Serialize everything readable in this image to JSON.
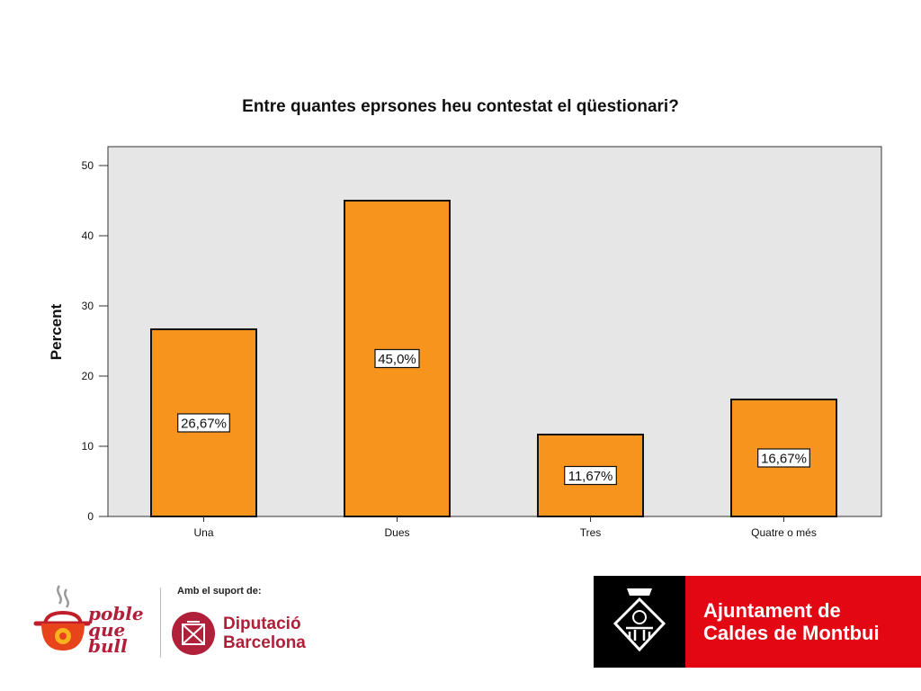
{
  "chart_data": {
    "type": "bar",
    "title": "Entre quantes eprsones heu contestat el qüestionari?",
    "xlabel": "",
    "ylabel": "Percent",
    "categories": [
      "Una",
      "Dues",
      "Tres",
      "Quatre o més"
    ],
    "values": [
      26.67,
      45.0,
      11.67,
      16.67
    ],
    "data_labels": [
      "26,67%",
      "45,0%",
      "11,67%",
      "16,67%"
    ],
    "ylim": [
      0,
      50
    ],
    "yticks": [
      0,
      10,
      20,
      30,
      40,
      50
    ],
    "grid": false,
    "legend": "none",
    "colors": {
      "bar": "#f7941d",
      "plot_background": "#e6e6e6"
    }
  },
  "footer": {
    "poble_logo_text": "poble\nque\nbull",
    "support_label": "Amb el suport de:",
    "diputacio_name": "Diputació\nBarcelona",
    "ajuntament_name": "Ajuntament de\nCaldes de Montbui",
    "colors": {
      "brand_red": "#e30613",
      "diputacio_red": "#b0203a"
    }
  }
}
